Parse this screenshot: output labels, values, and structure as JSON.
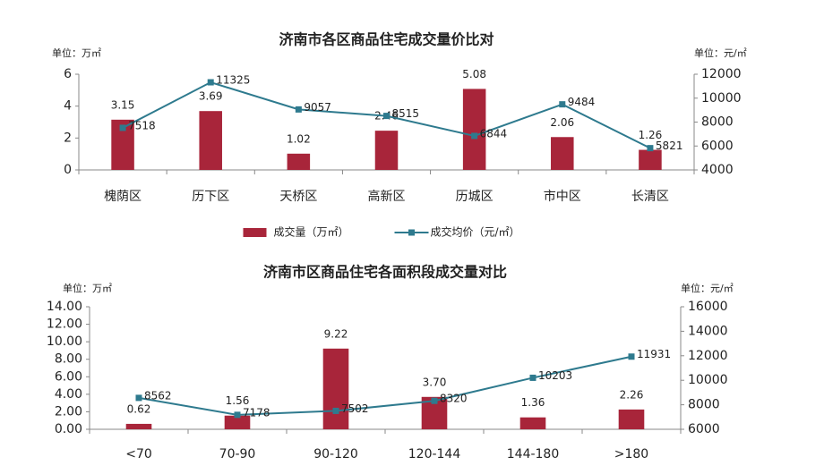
{
  "chart_data": [
    {
      "type": "combo",
      "title": "济南市各区商品住宅成交量价比对",
      "y_unit": "单位：万㎡",
      "y2_unit": "单位：元/㎡",
      "categories": [
        "槐荫区",
        "历下区",
        "天桥区",
        "高新区",
        "历城区",
        "市中区",
        "长清区"
      ],
      "series": [
        {
          "name": "成交量（万㎡）",
          "type": "bar",
          "color": "#a8253a",
          "values": [
            3.15,
            3.69,
            1.02,
            2.46,
            5.08,
            2.06,
            1.26
          ]
        },
        {
          "name": "成交均价（元/㎡）",
          "type": "line",
          "axis": "y2",
          "color": "#2e7a8e",
          "values": [
            7518,
            11325,
            9057,
            8515,
            6844,
            9484,
            5821
          ]
        }
      ],
      "ylim": [
        0,
        6
      ],
      "yticks": [
        0,
        2,
        4,
        6
      ],
      "y2lim": [
        4000,
        12000
      ],
      "y2ticks": [
        4000,
        6000,
        8000,
        10000,
        12000
      ],
      "legend": "bottom"
    },
    {
      "type": "combo",
      "title": "济南市区商品住宅各面积段成交量对比",
      "y_unit": "单位：万㎡",
      "y2_unit": "单位：元/㎡",
      "categories": [
        "<70",
        "70-90",
        "90-120",
        "120-144",
        "144-180",
        ">180"
      ],
      "series": [
        {
          "type": "bar",
          "color": "#a8253a",
          "values": [
            0.62,
            1.56,
            9.22,
            3.7,
            1.36,
            2.26
          ],
          "value_labels": [
            "0.62",
            "1.56",
            "9.22",
            "3.70",
            "1.36",
            "2.26"
          ]
        },
        {
          "type": "line",
          "axis": "y2",
          "color": "#2e7a8e",
          "values": [
            8562,
            7178,
            7502,
            8320,
            10203,
            11931
          ]
        }
      ],
      "ylim": [
        0,
        14
      ],
      "yticks": [
        {
          "value": 0,
          "label": "0.00"
        },
        {
          "value": 2,
          "label": "2.00"
        },
        {
          "value": 4,
          "label": "4.00"
        },
        {
          "value": 6,
          "label": "6.00"
        },
        {
          "value": 8,
          "label": "8.00"
        },
        {
          "value": 10,
          "label": "10.00"
        },
        {
          "value": 12,
          "label": "12.00"
        },
        {
          "value": 14,
          "label": "14.00"
        }
      ],
      "y2lim": [
        6000,
        16000
      ],
      "y2ticks": [
        6000,
        8000,
        10000,
        12000,
        14000,
        16000
      ]
    }
  ]
}
